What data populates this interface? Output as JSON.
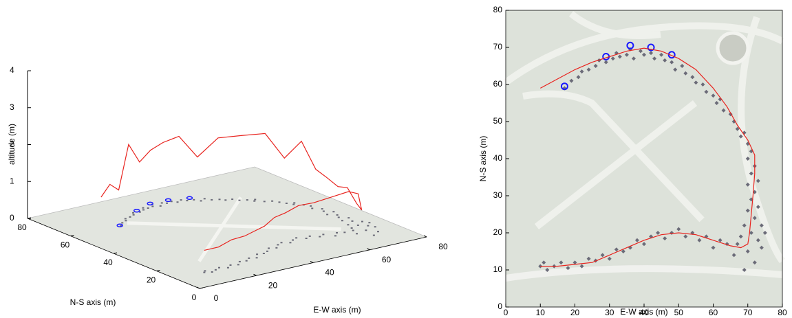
{
  "chart_data": [
    {
      "type": "line3d",
      "xlabel": "E-W axis (m)",
      "ylabel": "N-S axis (m)",
      "zlabel": "altitude (m)",
      "xlim": [
        0,
        80
      ],
      "ylim": [
        0,
        80
      ],
      "zlim": [
        0,
        4
      ],
      "xticks": [
        0,
        20,
        40,
        60,
        80
      ],
      "yticks": [
        0,
        20,
        40,
        60,
        80
      ],
      "zticks": [
        0,
        1,
        2,
        3,
        4
      ],
      "series": [
        {
          "style": "diamond",
          "color": "#6b6b78",
          "x": [
            17,
            19,
            21,
            22,
            24,
            26,
            27,
            29,
            31,
            32,
            33,
            35,
            36,
            37,
            39,
            40,
            42,
            43,
            45,
            46,
            48,
            49,
            51,
            52,
            54,
            55,
            57,
            58,
            60,
            61,
            62,
            63,
            65,
            66,
            67,
            68,
            69,
            70,
            71,
            70,
            72,
            71,
            73,
            70,
            72,
            71,
            73,
            70,
            72,
            74,
            69,
            71,
            68,
            73,
            67,
            70,
            74,
            66,
            72,
            69,
            75,
            64,
            62,
            60,
            58,
            56,
            54,
            52,
            50,
            48,
            46,
            44,
            42,
            40,
            38,
            36,
            34,
            32,
            30,
            28,
            26,
            24,
            22,
            20,
            18,
            16,
            14,
            12,
            11,
            10
          ],
          "y": [
            59,
            61,
            62,
            63.5,
            64,
            65,
            66.5,
            66,
            67,
            68.5,
            67.5,
            68,
            69.5,
            67,
            69,
            68,
            68.5,
            67,
            68,
            66.5,
            66,
            64,
            65,
            63,
            62,
            60.5,
            60,
            58,
            57,
            55,
            56,
            53,
            52,
            50,
            48,
            46,
            47,
            44,
            42,
            40,
            38,
            36,
            34,
            33,
            31,
            29,
            27,
            26,
            24,
            22,
            22,
            20,
            19,
            18,
            17,
            15,
            16,
            14,
            12,
            10,
            20,
            17,
            18,
            16,
            19,
            18,
            20,
            19,
            21,
            20,
            18.5,
            20,
            19,
            17,
            18,
            16,
            15,
            15.5,
            13,
            14,
            12.5,
            13,
            11,
            12,
            10.5,
            12,
            11,
            10,
            12,
            11
          ]
        },
        {
          "style": "circle",
          "color": "#1a1aff",
          "x": [
            17,
            29,
            36,
            42,
            48
          ],
          "y": [
            59.5,
            67.5,
            70.5,
            70,
            68
          ]
        },
        {
          "style": "line",
          "color": "#e8231e",
          "x": [
            10,
            15,
            20,
            25,
            30,
            35,
            40,
            45,
            50,
            55,
            60,
            64,
            67,
            70,
            72,
            72,
            71.5,
            71,
            70.5,
            70,
            68,
            65,
            60,
            55,
            50,
            45,
            40,
            35,
            30,
            25,
            20,
            15,
            10
          ],
          "y": [
            59,
            61.5,
            64,
            66,
            67.5,
            69,
            69.8,
            69,
            67,
            64,
            59,
            54,
            49,
            45,
            41,
            36,
            30,
            25,
            20,
            17,
            16,
            16.5,
            18,
            19.5,
            20,
            19.5,
            18,
            16,
            14,
            12,
            11.5,
            11,
            11
          ],
          "z": [
            0.9,
            1.1,
            0.8,
            1.9,
            1.3,
            1.5,
            1.6,
            1.7,
            1.1,
            1.6,
            1.7,
            1.8,
            1.2,
            1.7,
            1.0,
            0.9,
            0.8,
            0.9,
            0.6,
            0.5,
            1.0,
            1.1,
            1.0,
            0.9,
            0.9,
            0.8,
            0.8,
            0.7,
            0.7,
            0.7,
            0.7,
            0.6,
            0.6
          ]
        }
      ]
    },
    {
      "type": "scatter",
      "xlabel": "E-W axis (m)",
      "ylabel": "N-S axis (m)",
      "xlim": [
        0,
        80
      ],
      "ylim": [
        0,
        80
      ],
      "xticks": [
        0,
        10,
        20,
        30,
        40,
        50,
        60,
        70,
        80
      ],
      "yticks": [
        0,
        10,
        20,
        30,
        40,
        50,
        60,
        70,
        80
      ],
      "series": [
        {
          "style": "diamond",
          "color": "#6b6b78",
          "x": [
            17,
            19,
            21,
            22,
            24,
            26,
            27,
            29,
            31,
            32,
            33,
            35,
            36,
            37,
            39,
            40,
            42,
            43,
            45,
            46,
            48,
            49,
            51,
            52,
            54,
            55,
            57,
            58,
            60,
            61,
            62,
            63,
            65,
            66,
            67,
            68,
            69,
            70,
            71,
            70,
            72,
            71,
            73,
            70,
            72,
            71,
            73,
            70,
            72,
            74,
            69,
            71,
            68,
            73,
            67,
            70,
            74,
            66,
            72,
            69,
            75,
            64,
            62,
            60,
            58,
            56,
            54,
            52,
            50,
            48,
            46,
            44,
            42,
            40,
            38,
            36,
            34,
            32,
            30,
            28,
            26,
            24,
            22,
            20,
            18,
            16,
            14,
            12,
            11,
            10
          ],
          "values": [
            59,
            61,
            62,
            63.5,
            64,
            65,
            66.5,
            66,
            67,
            68.5,
            67.5,
            68,
            69.5,
            67,
            69,
            68,
            68.5,
            67,
            68,
            66.5,
            66,
            64,
            65,
            63,
            62,
            60.5,
            60,
            58,
            57,
            55,
            56,
            53,
            52,
            50,
            48,
            46,
            47,
            44,
            42,
            40,
            38,
            36,
            34,
            33,
            31,
            29,
            27,
            26,
            24,
            22,
            22,
            20,
            19,
            18,
            17,
            15,
            16,
            14,
            12,
            10,
            20,
            17,
            18,
            16,
            19,
            18,
            20,
            19,
            21,
            20,
            18.5,
            20,
            19,
            17,
            18,
            16,
            15,
            15.5,
            13,
            14,
            12.5,
            13,
            11,
            12,
            10.5,
            12,
            11,
            10,
            12,
            11
          ]
        },
        {
          "style": "circle",
          "color": "#1a1aff",
          "x": [
            17,
            29,
            36,
            42,
            48
          ],
          "values": [
            59.5,
            67.5,
            70.5,
            70,
            68
          ]
        },
        {
          "style": "line",
          "color": "#e8231e",
          "x": [
            10,
            15,
            20,
            25,
            30,
            35,
            40,
            45,
            50,
            55,
            60,
            64,
            67,
            70,
            72,
            72,
            71.5,
            71,
            70.5,
            70,
            68,
            65,
            60,
            55,
            50,
            45,
            40,
            35,
            30,
            25,
            20,
            15,
            10
          ],
          "values": [
            59,
            61.5,
            64,
            66,
            67.5,
            69,
            69.8,
            69,
            67,
            64,
            59,
            54,
            49,
            45,
            41,
            36,
            30,
            25,
            20,
            17,
            16,
            16.5,
            18,
            19.5,
            20,
            19.5,
            18,
            16,
            14,
            12,
            11.5,
            11,
            11
          ]
        }
      ]
    }
  ]
}
